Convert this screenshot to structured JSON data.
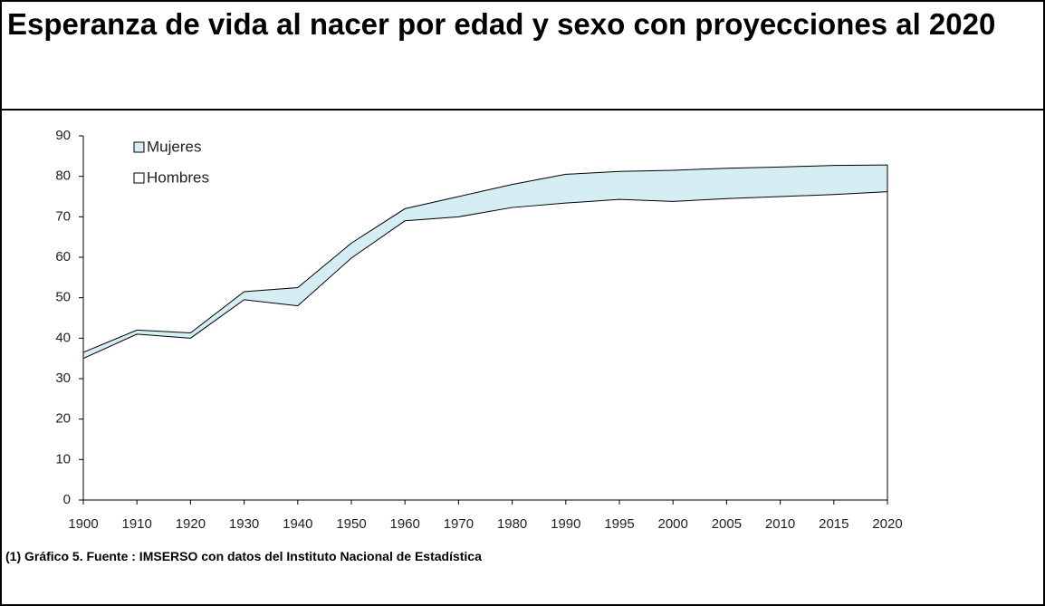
{
  "chart_data": {
    "type": "area",
    "title": "Esperanza de vida al nacer por edad y sexo con proyecciones al 2020",
    "note": "(1)  Gráfico 5. Fuente : IMSERSO con datos del Instituto Nacional de Estadística",
    "categories": [
      "1900",
      "1910",
      "1920",
      "1930",
      "1940",
      "1950",
      "1960",
      "1970",
      "1980",
      "1990",
      "1995",
      "2000",
      "2005",
      "2010",
      "2015",
      "2020"
    ],
    "series": [
      {
        "name": "Mujeres",
        "color": "#d4eef4",
        "values": [
          36.5,
          42,
          41.3,
          51.5,
          52.5,
          63.5,
          72,
          75,
          78,
          80.5,
          81.2,
          81.5,
          82,
          82.3,
          82.7,
          82.8
        ]
      },
      {
        "name": "Hombres",
        "color": "#ffffff",
        "values": [
          35,
          41,
          40,
          49.5,
          48,
          59.8,
          69,
          70,
          72.3,
          73.4,
          74.3,
          73.8,
          74.5,
          75,
          75.5,
          76.2
        ]
      }
    ],
    "ylim": [
      0,
      90
    ],
    "yticks": [
      0,
      10,
      20,
      30,
      40,
      50,
      60,
      70,
      80,
      90
    ],
    "legend": "top-left"
  }
}
